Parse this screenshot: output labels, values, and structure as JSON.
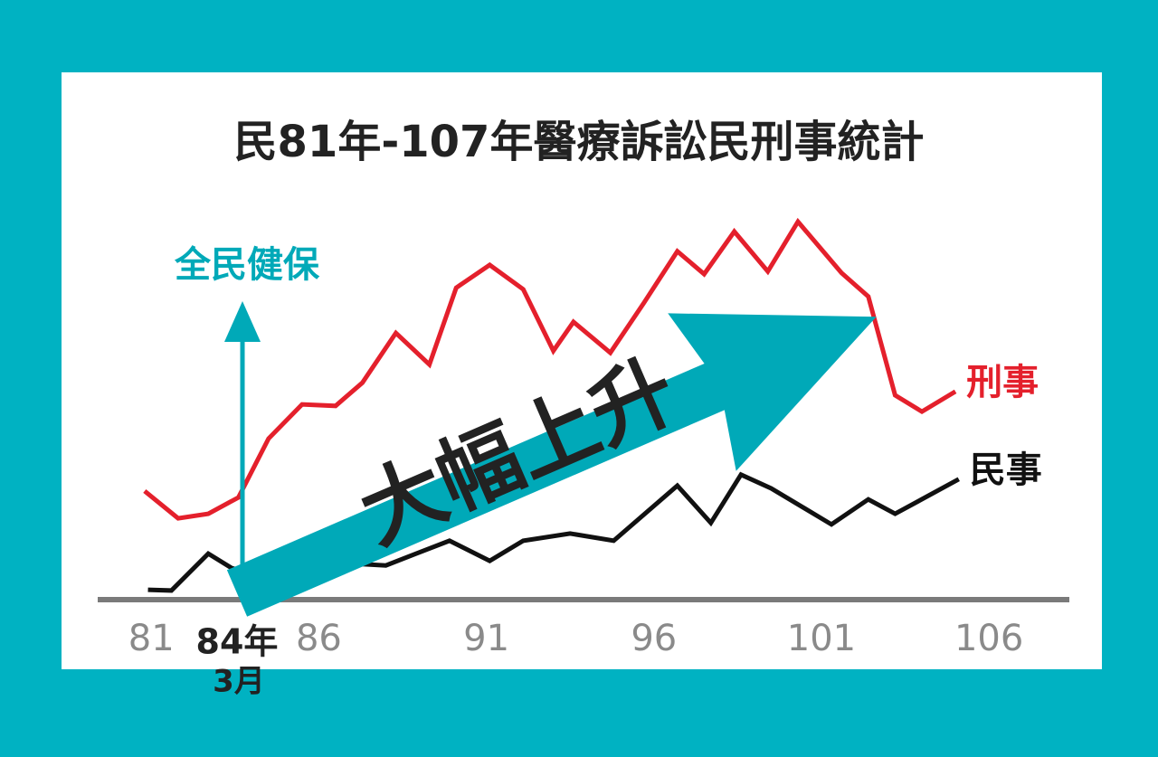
{
  "chart_data": {
    "type": "line",
    "title": "民81年-107年醫療訴訟民刑事統計",
    "annotations": [
      "全民健保",
      "大幅上升",
      "84年",
      "3月"
    ],
    "xlim": [
      79.4,
      108.4
    ],
    "xticks": [
      81,
      86,
      91,
      96,
      101,
      106
    ],
    "ylim": [
      0,
      100
    ],
    "series": [
      {
        "name": "刑事",
        "color": "#e4202c",
        "x": [
          80.8,
          81.8,
          82.7,
          83.6,
          84.5,
          85.5,
          86.5,
          87.3,
          88.3,
          89.3,
          90.1,
          91.1,
          92.1,
          93,
          93.6,
          94.7,
          95.7,
          96.7,
          97.5,
          98.4,
          99.4,
          100.3,
          101.6,
          102.4,
          103.2,
          104,
          105
        ],
        "values": [
          28.6,
          21.4,
          22.6,
          26.9,
          42.4,
          51.4,
          51,
          57.1,
          70.2,
          61.9,
          82.1,
          88.1,
          81.7,
          65.5,
          73.1,
          65,
          78.1,
          91.7,
          85.7,
          96.9,
          86.4,
          99.5,
          86,
          79.8,
          53.8,
          49.5,
          54.8
        ]
      },
      {
        "name": "民事",
        "color": "#111111",
        "x": [
          80.9,
          81.6,
          82.7,
          83.4,
          84.6,
          85.9,
          87,
          88,
          88.9,
          89.9,
          91.1,
          92.1,
          93.5,
          94.8,
          96.7,
          97.7,
          98.6,
          99.5,
          101.3,
          102.4,
          103.2,
          105.1
        ],
        "values": [
          2.6,
          2.4,
          12.1,
          8.3,
          5.5,
          7.9,
          9.5,
          9,
          12.1,
          15.5,
          10.2,
          15.5,
          17.4,
          15.5,
          30,
          20.2,
          32.9,
          29.3,
          19.8,
          26.4,
          22.6,
          31.7
        ]
      }
    ]
  }
}
